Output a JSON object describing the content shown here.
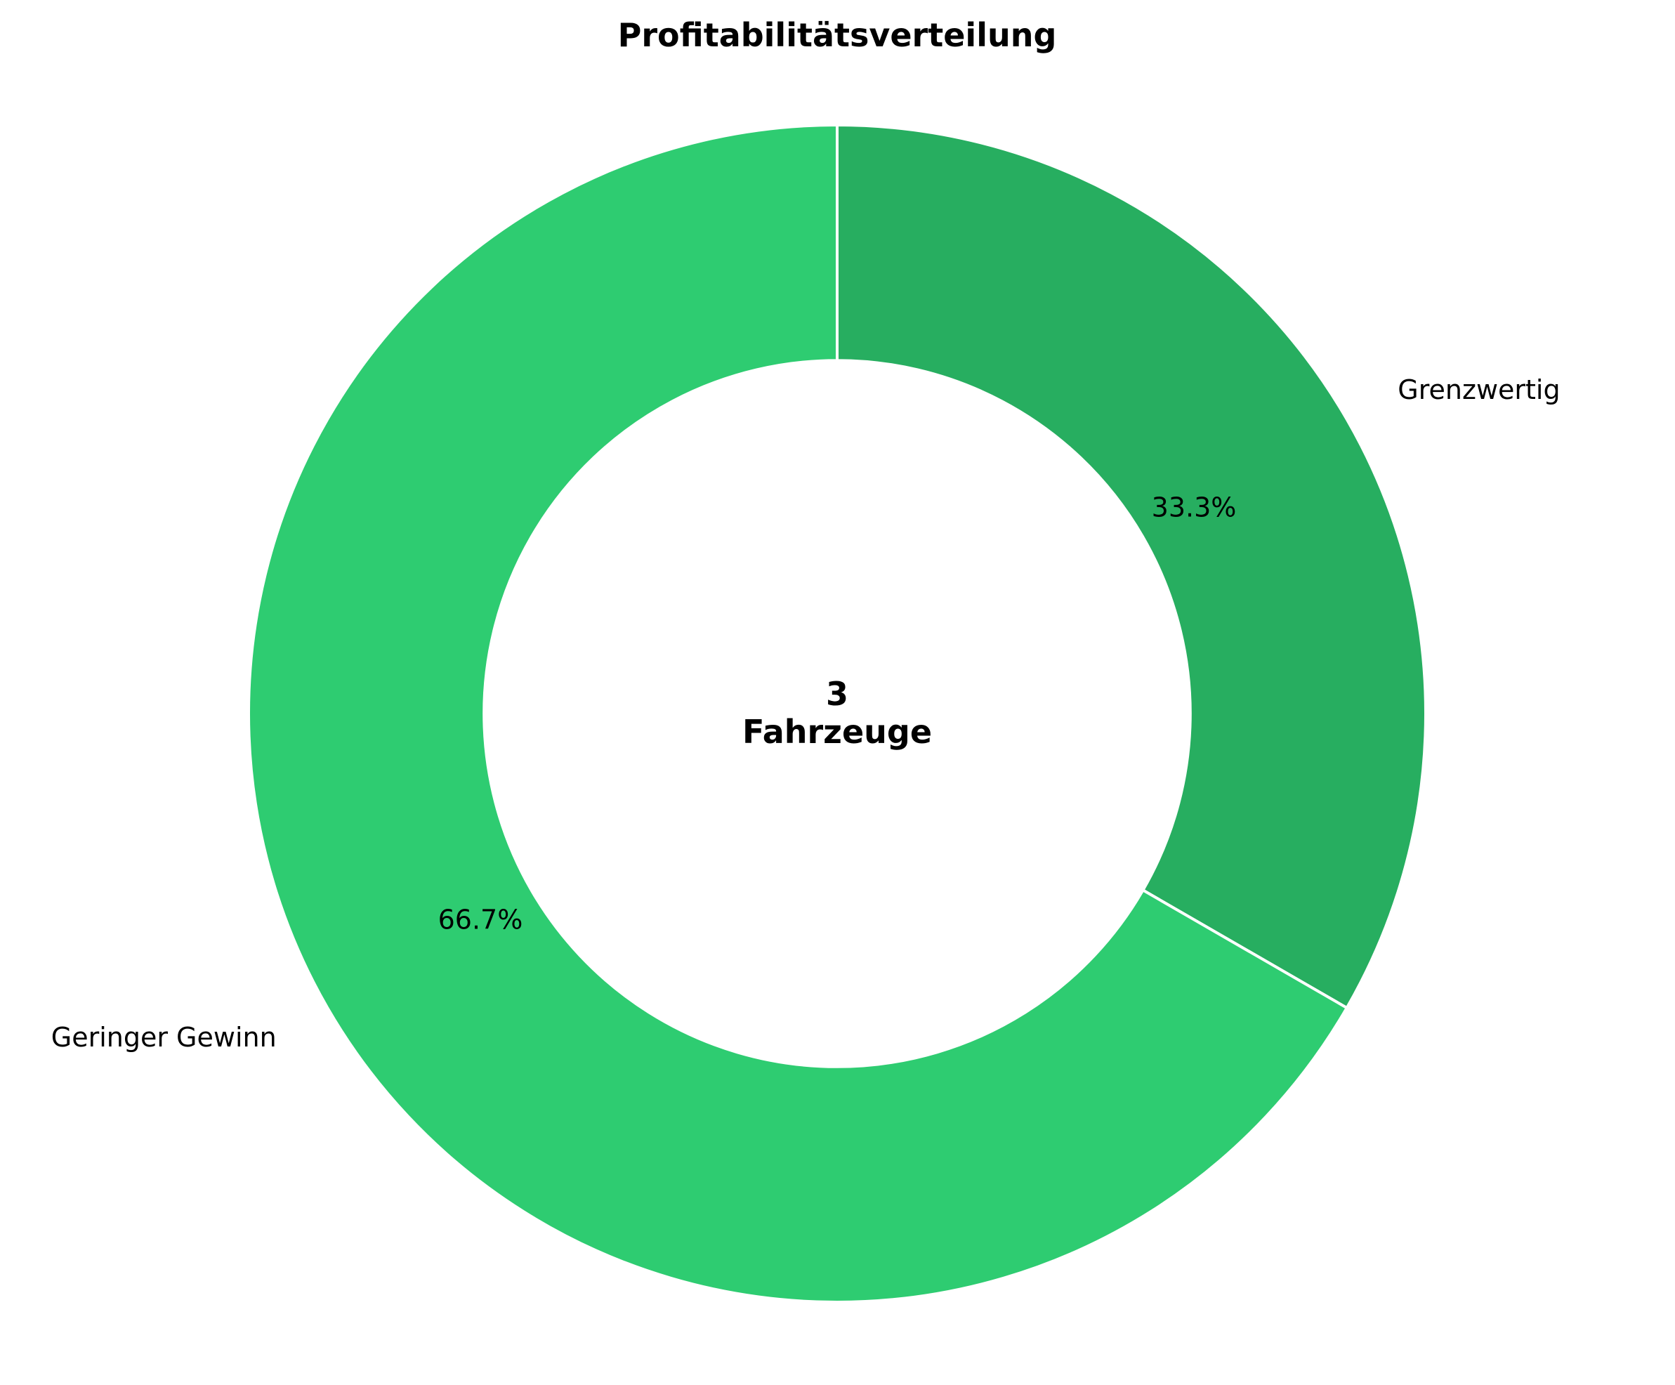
{
  "chart_data": {
    "type": "pie",
    "title": "Profitabilitätsverteilung",
    "categories": [
      "Grenzwertig",
      "Geringer Gewinn"
    ],
    "values": [
      1,
      2
    ],
    "percent_labels": [
      "33.3%",
      "66.7%"
    ],
    "colors": [
      "#27ae60",
      "#2ecc71"
    ],
    "start_angle_deg": 90,
    "direction": "clockwise",
    "hole_ratio": 0.6,
    "center_text": {
      "count": "3",
      "unit": "Fahrzeuge"
    },
    "legend": "none"
  }
}
